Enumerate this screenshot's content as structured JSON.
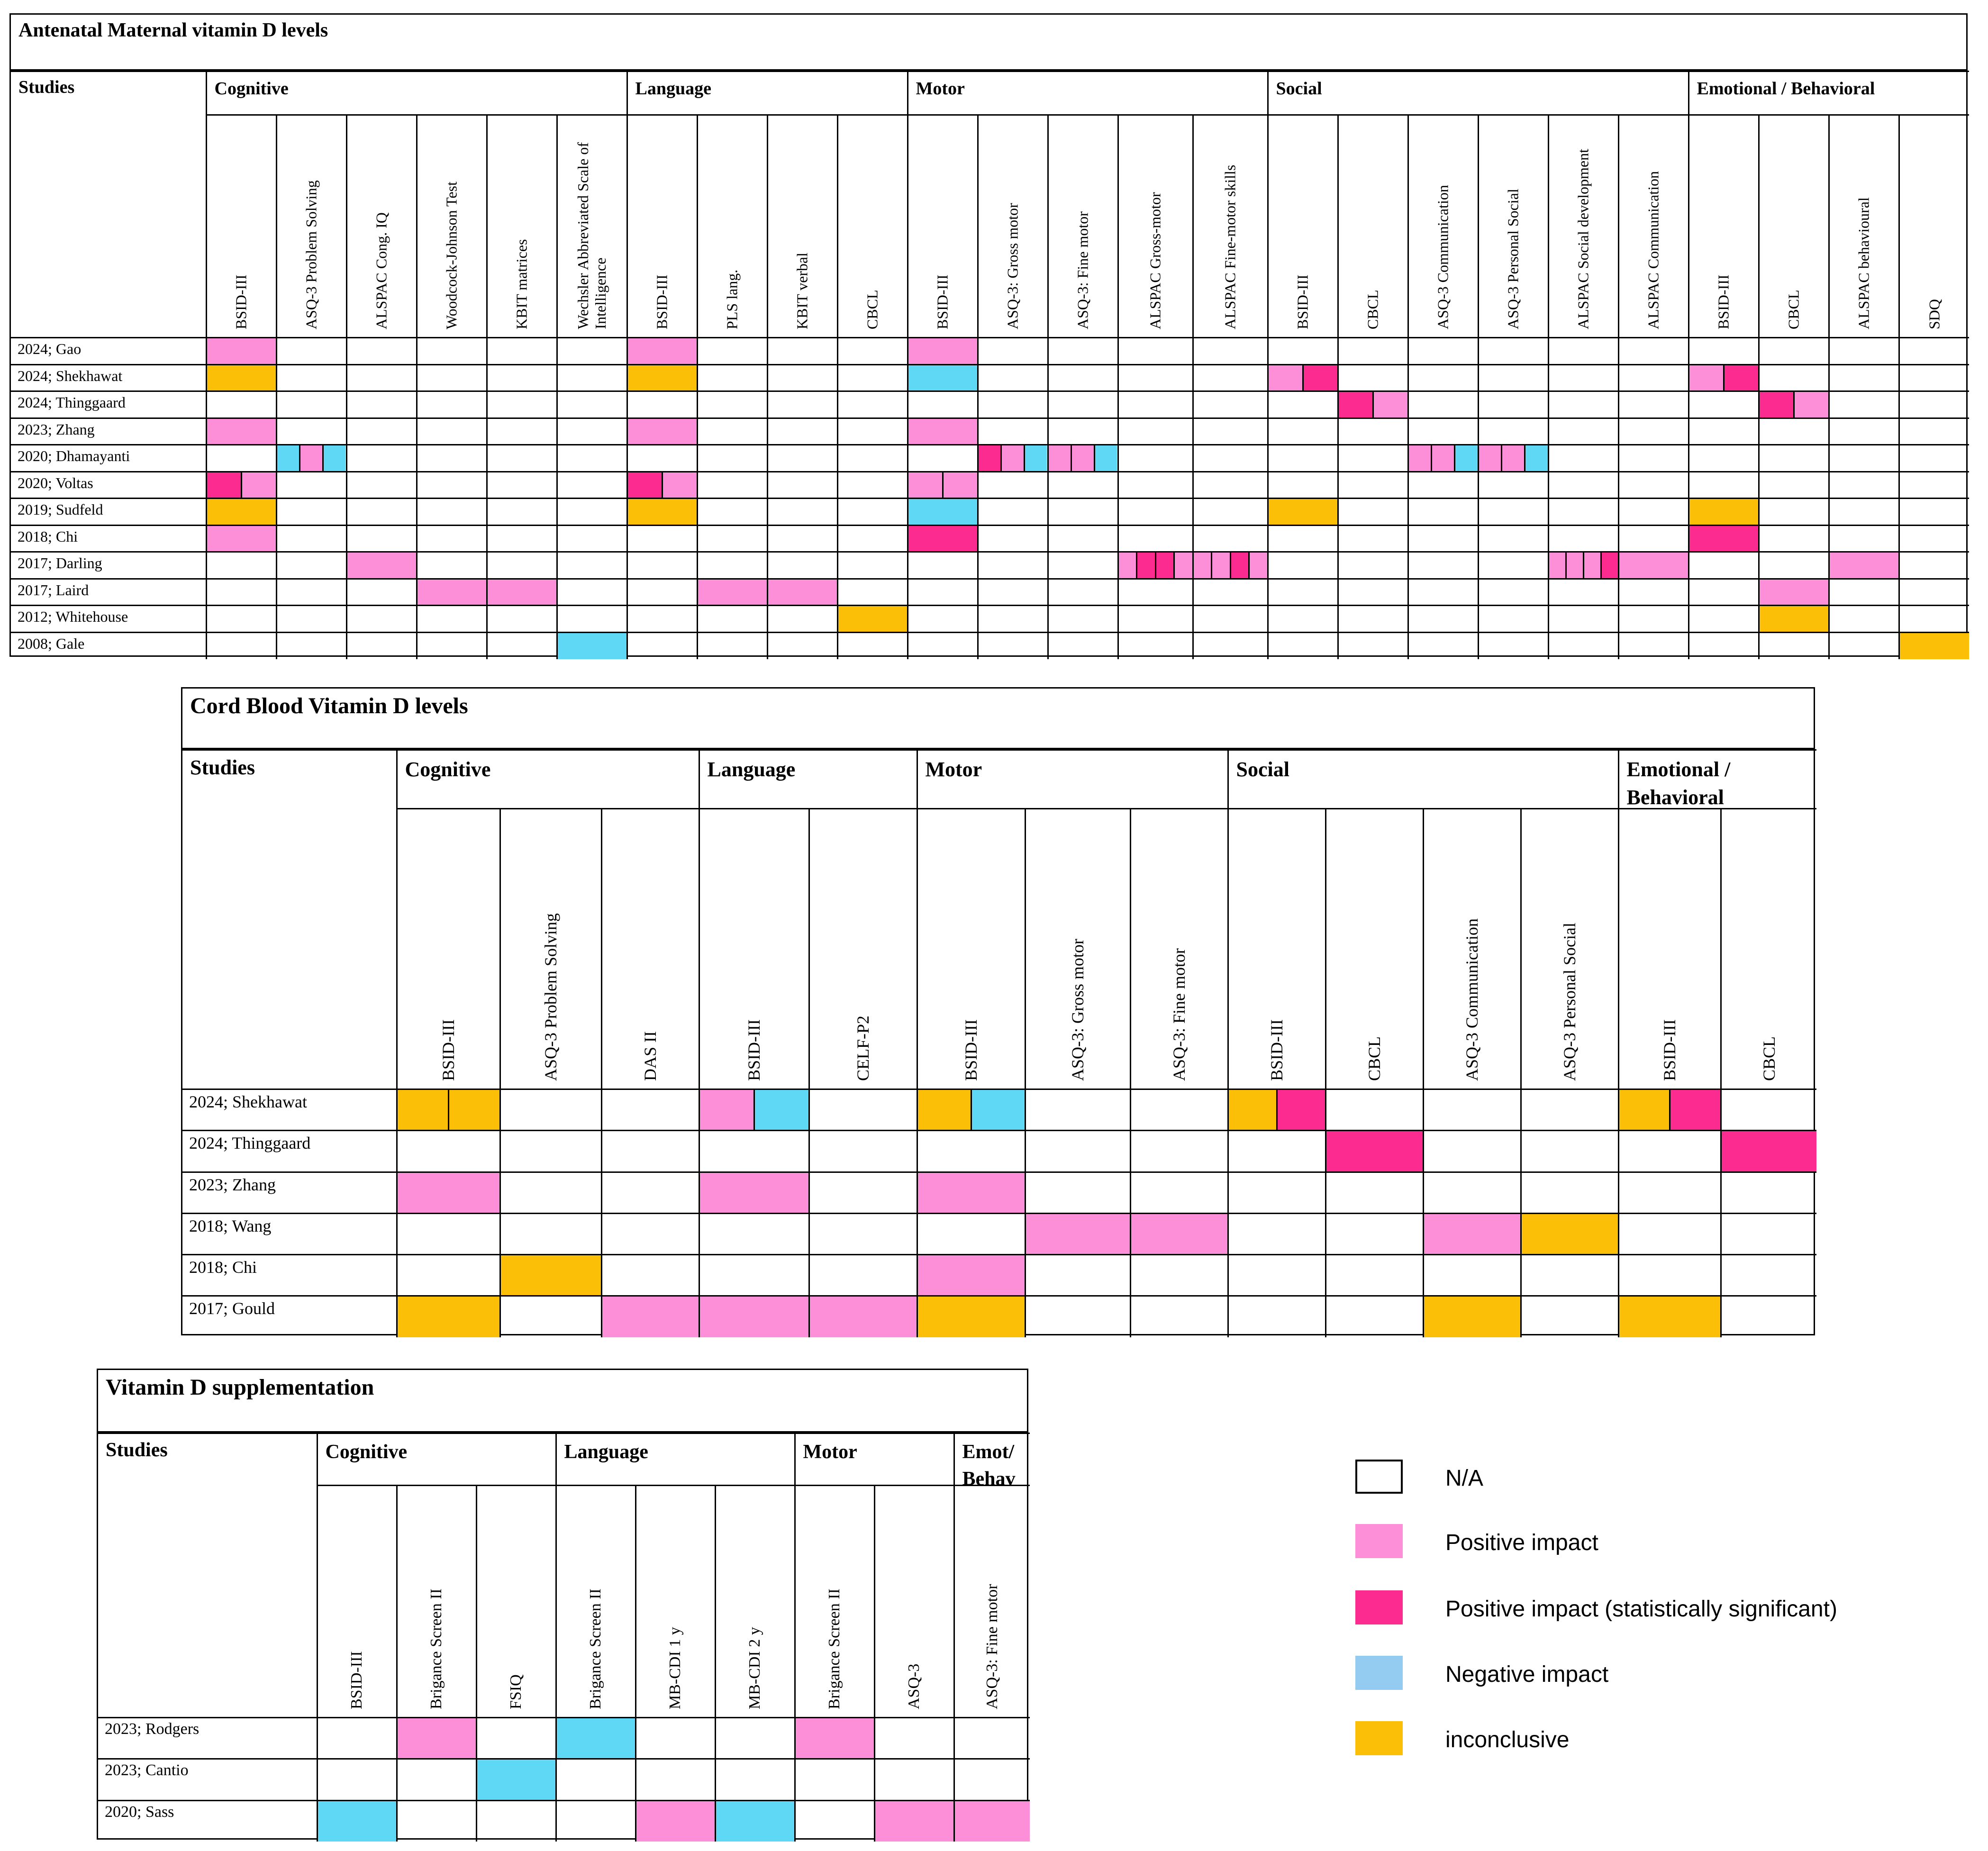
{
  "colors": {
    "P": "#fd8fd8",
    "S": "#fb2b8f",
    "N": "#5fd8f5",
    "I": "#fbbf07",
    "NA": "#ffffff",
    "legend_neg": "#94cbf0"
  },
  "legend": {
    "items": [
      {
        "label": "N/A",
        "color_key": "NA"
      },
      {
        "label": "Positive impact",
        "color_key": "P"
      },
      {
        "label": "Positive impact (statistically significant)",
        "color_key": "S"
      },
      {
        "label": "Negative impact",
        "color_key": "legend_neg"
      },
      {
        "label": "inconclusive",
        "color_key": "I"
      }
    ]
  },
  "tables": [
    {
      "title": "Antenatal Maternal vitamin D levels",
      "studies_label": "Studies",
      "groups": [
        {
          "label": "Cognitive",
          "span": 6
        },
        {
          "label": "Language",
          "span": 4
        },
        {
          "label": "Motor",
          "span": 5
        },
        {
          "label": "Social",
          "span": 6
        },
        {
          "label": "Emotional / Behavioral",
          "span": 4
        }
      ],
      "columns": [
        "BSID-III",
        "ASQ-3 Problem Solving",
        "ALSPAC Cong. IQ",
        "Woodcock-Johnson Test",
        "KBIT matrices",
        "Wechsler Abbreviated Scale of Intelligence",
        "BSID-III",
        "PLS lang.",
        "KBIT verbal",
        "CBCL",
        "BSID-III",
        "ASQ-3: Gross motor",
        "ASQ-3: Fine motor",
        "ALSPAC Gross-motor",
        "ALSPAC Fine-motor skills",
        "BSID-III",
        "CBCL",
        "ASQ-3 Communication",
        "ASQ-3 Personal Social",
        "ALSPAC Social development",
        "ALSPAC Communication",
        "BSID-III",
        "CBCL",
        "ALSPAC behavioural",
        "SDQ"
      ],
      "rows": [
        {
          "study": "2024; Gao",
          "cells": [
            "P",
            "",
            "",
            "",
            "",
            "",
            "P",
            "",
            "",
            "",
            "P",
            "",
            "",
            "",
            "",
            "",
            "",
            "",
            "",
            "",
            "",
            "",
            "",
            "",
            ""
          ]
        },
        {
          "study": "2024; Shekhawat",
          "cells": [
            "I",
            "",
            "",
            "",
            "",
            "",
            "I",
            "",
            "",
            "",
            "N",
            "",
            "",
            "",
            "",
            "P,S",
            "",
            "",
            "",
            "",
            "",
            "P,S",
            "",
            "",
            ""
          ]
        },
        {
          "study": "2024; Thinggaard",
          "cells": [
            "",
            "",
            "",
            "",
            "",
            "",
            "",
            "",
            "",
            "",
            "",
            "",
            "",
            "",
            "",
            "",
            "S,P",
            "",
            "",
            "",
            "",
            "",
            "S,P",
            "",
            ""
          ]
        },
        {
          "study": "2023; Zhang",
          "cells": [
            "P",
            "",
            "",
            "",
            "",
            "",
            "P",
            "",
            "",
            "",
            "P",
            "",
            "",
            "",
            "",
            "",
            "",
            "",
            "",
            "",
            "",
            "",
            "",
            "",
            ""
          ]
        },
        {
          "study": "2020; Dhamayanti",
          "cells": [
            "",
            "N,P,N",
            "",
            "",
            "",
            "",
            "",
            "",
            "",
            "",
            "",
            "S,P,N",
            "P,P,N",
            "",
            "",
            "",
            "",
            "P,P,N",
            "P,P,N",
            "",
            "",
            "",
            "",
            "",
            ""
          ]
        },
        {
          "study": "2020; Voltas",
          "cells": [
            "S,P",
            "",
            "",
            "",
            "",
            "",
            "S,P",
            "",
            "",
            "",
            "P,P",
            "",
            "",
            "",
            "",
            "",
            "",
            "",
            "",
            "",
            "",
            "",
            "",
            "",
            ""
          ]
        },
        {
          "study": "2019; Sudfeld",
          "cells": [
            "I",
            "",
            "",
            "",
            "",
            "",
            "I",
            "",
            "",
            "",
            "N",
            "",
            "",
            "",
            "",
            "I",
            "",
            "",
            "",
            "",
            "",
            "I",
            "",
            "",
            ""
          ]
        },
        {
          "study": "2018; Chi",
          "cells": [
            "P",
            "",
            "",
            "",
            "",
            "",
            "",
            "",
            "",
            "",
            "S",
            "",
            "",
            "",
            "",
            "",
            "",
            "",
            "",
            "",
            "",
            "S",
            "",
            "",
            ""
          ]
        },
        {
          "study": "2017; Darling",
          "cells": [
            "",
            "",
            "P",
            "",
            "",
            "",
            "",
            "",
            "",
            "",
            "",
            "",
            "",
            "P,S,S,P",
            "P,P,S,P",
            "",
            "",
            "",
            "",
            "P,P,P,S",
            "P",
            "",
            "",
            "P",
            ""
          ]
        },
        {
          "study": "2017; Laird",
          "cells": [
            "",
            "",
            "",
            "P",
            "P",
            "",
            "",
            "P",
            "P",
            "",
            "",
            "",
            "",
            "",
            "",
            "",
            "",
            "",
            "",
            "",
            "",
            "",
            "P",
            "",
            ""
          ]
        },
        {
          "study": "2012; Whitehouse",
          "cells": [
            "",
            "",
            "",
            "",
            "",
            "",
            "",
            "",
            "",
            "I",
            "",
            "",
            "",
            "",
            "",
            "",
            "",
            "",
            "",
            "",
            "",
            "",
            "I",
            "",
            ""
          ]
        },
        {
          "study": "2008; Gale",
          "cells": [
            "",
            "",
            "",
            "",
            "",
            "N",
            "",
            "",
            "",
            "",
            "",
            "",
            "",
            "",
            "",
            "",
            "",
            "",
            "",
            "",
            "",
            "",
            "",
            "",
            "I"
          ]
        }
      ]
    },
    {
      "title": "Cord Blood Vitamin D levels",
      "studies_label": "Studies",
      "groups": [
        {
          "label": "Cognitive",
          "span": 3
        },
        {
          "label": "Language",
          "span": 2
        },
        {
          "label": "Motor",
          "span": 3
        },
        {
          "label": "Social",
          "span": 4
        },
        {
          "label": "Emotional / Behavioral",
          "span": 2
        }
      ],
      "columns": [
        "BSID-III",
        "ASQ-3 Problem Solving",
        "DAS II",
        "BSID-III",
        "CELF-P2",
        "BSID-III",
        "ASQ-3: Gross motor",
        "ASQ-3: Fine motor",
        "BSID-III",
        "CBCL",
        "ASQ-3 Communication",
        "ASQ-3 Personal Social",
        "BSID-III",
        "CBCL"
      ],
      "rows": [
        {
          "study": "2024; Shekhawat",
          "cells": [
            "I,I",
            "",
            "",
            "P,N",
            "",
            "I,N",
            "",
            "",
            "I,S",
            "",
            "",
            "",
            "I,S",
            ""
          ]
        },
        {
          "study": "2024; Thinggaard",
          "cells": [
            "",
            "",
            "",
            "",
            "",
            "",
            "",
            "",
            "",
            "S",
            "",
            "",
            "",
            "S"
          ]
        },
        {
          "study": "2023; Zhang",
          "cells": [
            "P",
            "",
            "",
            "P",
            "",
            "P",
            "",
            "",
            "",
            "",
            "",
            "",
            "",
            ""
          ]
        },
        {
          "study": "2018; Wang",
          "cells": [
            "",
            "",
            "",
            "",
            "",
            "",
            "P",
            "P",
            "",
            "",
            "P",
            "I",
            "",
            ""
          ]
        },
        {
          "study": "2018; Chi",
          "cells": [
            "",
            "I",
            "",
            "",
            "",
            "P",
            "",
            "",
            "",
            "",
            "",
            "",
            "",
            ""
          ]
        },
        {
          "study": "2017; Gould",
          "cells": [
            "I",
            "",
            "P",
            "P",
            "P",
            "I",
            "",
            "",
            "",
            "",
            "I",
            "",
            "I",
            ""
          ]
        }
      ]
    },
    {
      "title": "Vitamin D supplementation",
      "studies_label": "Studies",
      "groups": [
        {
          "label": "Cognitive",
          "span": 3
        },
        {
          "label": "Language",
          "span": 3
        },
        {
          "label": "Motor",
          "span": 2
        },
        {
          "label": "Emot/ Behav",
          "span": 1
        }
      ],
      "columns": [
        "BSID-III",
        "Brigance Screen II",
        "FSIQ",
        "Brigance Screen II",
        "MB-CDI 1 y",
        "MB-CDI 2 y",
        "Brigance Screen II",
        "ASQ-3",
        "ASQ-3: Fine motor"
      ],
      "rows": [
        {
          "study": "2023; Rodgers",
          "cells": [
            "",
            "P",
            "",
            "N",
            "",
            "",
            "P",
            "",
            ""
          ]
        },
        {
          "study": "2023; Cantio",
          "cells": [
            "",
            "",
            "N",
            "",
            "",
            "",
            "",
            "",
            ""
          ]
        },
        {
          "study": "2020; Sass",
          "cells": [
            "N",
            "",
            "",
            "",
            "P",
            "N",
            "",
            "P",
            "P"
          ]
        }
      ]
    }
  ]
}
